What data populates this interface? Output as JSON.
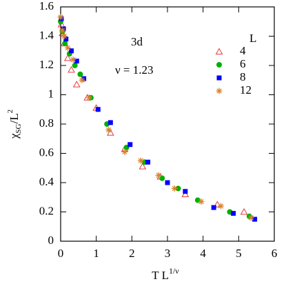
{
  "chart_data": {
    "type": "scatter",
    "x_label": {
      "base": "T L",
      "sup": "1/ν"
    },
    "y_label": {
      "base": "χ",
      "sub": "SG",
      "mid": "/L",
      "sup": "2"
    },
    "annotations": [
      "3d",
      "ν = 1.23"
    ],
    "legend_title": "L",
    "legend": "upper right",
    "xlim": [
      0,
      6
    ],
    "xticks": [
      0,
      1,
      2,
      3,
      4,
      5,
      6
    ],
    "ylim": [
      0,
      1.6
    ],
    "yticks": [
      0,
      0.2,
      0.4,
      0.6,
      0.8,
      1,
      1.2,
      1.4,
      1.6
    ],
    "series": [
      {
        "name": "4",
        "color": "#e8383d",
        "marker": "triangle-open",
        "x": [
          0.02,
          0.05,
          0.1,
          0.2,
          0.3,
          0.45,
          0.75,
          1.0,
          1.4,
          1.8,
          2.3,
          2.8,
          3.5,
          4.4,
          5.15
        ],
        "values": [
          1.48,
          1.42,
          1.35,
          1.25,
          1.17,
          1.07,
          0.98,
          0.91,
          0.74,
          0.63,
          0.51,
          0.44,
          0.32,
          0.25,
          0.2
        ]
      },
      {
        "name": "6",
        "color": "#00b000",
        "marker": "circle",
        "x": [
          0.0,
          0.05,
          0.12,
          0.25,
          0.4,
          0.55,
          0.85,
          1.3,
          1.85,
          2.35,
          2.85,
          3.3,
          3.85,
          4.75,
          5.3
        ],
        "values": [
          1.5,
          1.43,
          1.35,
          1.28,
          1.2,
          1.14,
          0.98,
          0.8,
          0.64,
          0.54,
          0.43,
          0.36,
          0.28,
          0.2,
          0.17
        ]
      },
      {
        "name": "8",
        "color": "#0000ff",
        "marker": "square",
        "x": [
          0.02,
          0.08,
          0.15,
          0.3,
          0.45,
          0.65,
          1.05,
          1.4,
          1.95,
          2.45,
          3.0,
          3.5,
          4.3,
          4.85,
          5.45
        ],
        "values": [
          1.52,
          1.45,
          1.38,
          1.3,
          1.23,
          1.11,
          0.9,
          0.81,
          0.66,
          0.54,
          0.4,
          0.34,
          0.23,
          0.19,
          0.15
        ]
      },
      {
        "name": "12",
        "color": "#d8842c",
        "marker": "star",
        "x": [
          0.0,
          0.05,
          0.1,
          0.2,
          0.35,
          0.6,
          0.8,
          1.35,
          1.8,
          2.25,
          2.75,
          3.2,
          3.95,
          4.5,
          5.35
        ],
        "values": [
          1.53,
          1.44,
          1.4,
          1.32,
          1.24,
          1.1,
          0.98,
          0.76,
          0.61,
          0.55,
          0.45,
          0.36,
          0.27,
          0.24,
          0.16
        ]
      }
    ]
  }
}
